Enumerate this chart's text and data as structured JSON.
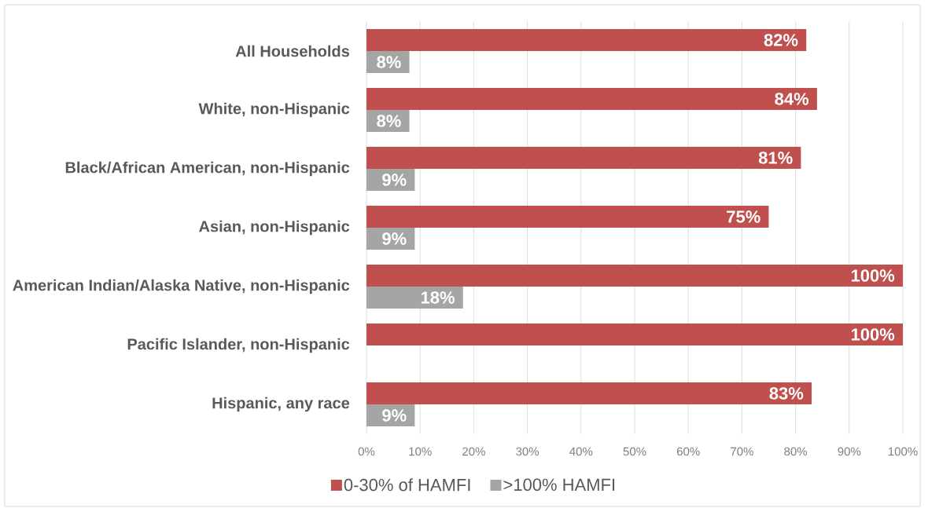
{
  "chart_data": {
    "type": "bar",
    "orientation": "horizontal",
    "categories": [
      "All Households",
      "White, non-Hispanic",
      "Black/African American, non-Hispanic",
      "Asian, non-Hispanic",
      "American Indian/Alaska Native, non-Hispanic",
      "Pacific Islander, non-Hispanic",
      "Hispanic, any race"
    ],
    "series": [
      {
        "name": "0-30% of HAMFI",
        "color": "#c0504d",
        "values": [
          82,
          84,
          81,
          75,
          100,
          100,
          83
        ],
        "value_labels": [
          "82%",
          "84%",
          "81%",
          "75%",
          "100%",
          "100%",
          "83%"
        ]
      },
      {
        "name": ">100% HAMFI",
        "color": "#a5a5a5",
        "values": [
          8,
          8,
          9,
          9,
          18,
          null,
          9
        ],
        "value_labels": [
          "8%",
          "8%",
          "9%",
          "9%",
          "18%",
          null,
          "9%"
        ]
      }
    ],
    "xlim": [
      0,
      100
    ],
    "xticks": [
      {
        "value": 0,
        "label": "0%"
      },
      {
        "value": 10,
        "label": "10%"
      },
      {
        "value": 20,
        "label": "20%"
      },
      {
        "value": 30,
        "label": "30%"
      },
      {
        "value": 40,
        "label": "40%"
      },
      {
        "value": 50,
        "label": "50%"
      },
      {
        "value": 60,
        "label": "60%"
      },
      {
        "value": 70,
        "label": "70%"
      },
      {
        "value": 80,
        "label": "80%"
      },
      {
        "value": 90,
        "label": "90%"
      },
      {
        "value": 100,
        "label": "100%"
      }
    ],
    "grid": "x",
    "legend": "bottom"
  }
}
